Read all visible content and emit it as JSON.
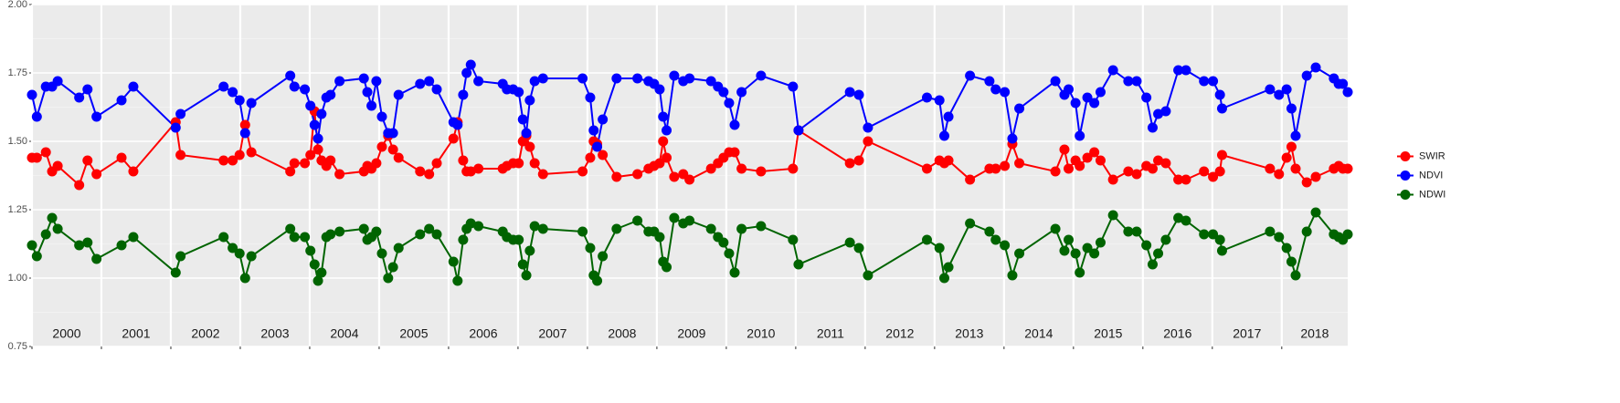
{
  "chart_data": {
    "type": "line",
    "x": [
      2000.0,
      2000.07,
      2000.2,
      2000.29,
      2000.37,
      2000.68,
      2000.8,
      2000.93,
      2001.29,
      2001.46,
      2002.07,
      2002.14,
      2002.76,
      2002.89,
      2002.99,
      2003.07,
      2003.16,
      2003.72,
      2003.78,
      2003.93,
      2004.01,
      2004.07,
      2004.12,
      2004.17,
      2004.24,
      2004.3,
      2004.43,
      2004.78,
      2004.83,
      2004.89,
      2004.96,
      2005.04,
      2005.13,
      2005.2,
      2005.28,
      2005.59,
      2005.72,
      2005.83,
      2006.07,
      2006.13,
      2006.21,
      2006.26,
      2006.32,
      2006.43,
      2006.78,
      2006.84,
      2006.93,
      2007.01,
      2007.07,
      2007.12,
      2007.17,
      2007.24,
      2007.36,
      2007.93,
      2008.04,
      2008.09,
      2008.14,
      2008.22,
      2008.42,
      2008.72,
      2008.88,
      2008.96,
      2009.04,
      2009.09,
      2009.14,
      2009.25,
      2009.38,
      2009.47,
      2009.78,
      2009.88,
      2009.96,
      2010.04,
      2010.12,
      2010.22,
      2010.5,
      2010.96,
      2011.04,
      2011.78,
      2011.91,
      2012.04,
      2012.89,
      2013.07,
      2013.14,
      2013.2,
      2013.51,
      2013.79,
      2013.88,
      2014.01,
      2014.12,
      2014.22,
      2014.74,
      2014.87,
      2014.93,
      2015.03,
      2015.09,
      2015.2,
      2015.3,
      2015.39,
      2015.57,
      2015.79,
      2015.91,
      2016.05,
      2016.14,
      2016.22,
      2016.33,
      2016.51,
      2016.62,
      2016.88,
      2017.01,
      2017.11,
      2017.14,
      2017.83,
      2017.96,
      2018.07,
      2018.14,
      2018.2,
      2018.36,
      2018.49,
      2018.75,
      2018.82,
      2018.88,
      2018.95
    ],
    "series": [
      {
        "name": "SWIR",
        "color": "#ff0000",
        "values": [
          1.44,
          1.44,
          1.46,
          1.39,
          1.41,
          1.34,
          1.43,
          1.38,
          1.44,
          1.39,
          1.57,
          1.45,
          1.43,
          1.43,
          1.45,
          1.56,
          1.46,
          1.39,
          1.42,
          1.42,
          1.45,
          1.61,
          1.47,
          1.43,
          1.41,
          1.43,
          1.38,
          1.39,
          1.41,
          1.4,
          1.42,
          1.48,
          1.52,
          1.47,
          1.44,
          1.39,
          1.38,
          1.42,
          1.51,
          1.57,
          1.43,
          1.39,
          1.39,
          1.4,
          1.4,
          1.41,
          1.42,
          1.42,
          1.5,
          1.52,
          1.48,
          1.42,
          1.38,
          1.39,
          1.44,
          1.5,
          1.49,
          1.45,
          1.37,
          1.38,
          1.4,
          1.41,
          1.42,
          1.5,
          1.44,
          1.37,
          1.38,
          1.36,
          1.4,
          1.42,
          1.44,
          1.46,
          1.46,
          1.4,
          1.39,
          1.4,
          1.54,
          1.42,
          1.43,
          1.5,
          1.4,
          1.43,
          1.42,
          1.43,
          1.36,
          1.4,
          1.4,
          1.41,
          1.49,
          1.42,
          1.39,
          1.47,
          1.4,
          1.43,
          1.41,
          1.44,
          1.46,
          1.43,
          1.36,
          1.39,
          1.38,
          1.41,
          1.4,
          1.43,
          1.42,
          1.36,
          1.36,
          1.39,
          1.37,
          1.39,
          1.45,
          1.4,
          1.38,
          1.44,
          1.48,
          1.4,
          1.35,
          1.37,
          1.4,
          1.41,
          1.4,
          1.4
        ]
      },
      {
        "name": "NDVI",
        "color": "#0000ff",
        "values": [
          1.67,
          1.59,
          1.7,
          1.7,
          1.72,
          1.66,
          1.69,
          1.59,
          1.65,
          1.7,
          1.55,
          1.6,
          1.7,
          1.68,
          1.65,
          1.53,
          1.64,
          1.74,
          1.7,
          1.69,
          1.63,
          1.56,
          1.51,
          1.6,
          1.66,
          1.67,
          1.72,
          1.73,
          1.68,
          1.63,
          1.72,
          1.59,
          1.53,
          1.53,
          1.67,
          1.71,
          1.72,
          1.69,
          1.57,
          1.56,
          1.67,
          1.75,
          1.78,
          1.72,
          1.71,
          1.69,
          1.69,
          1.68,
          1.58,
          1.53,
          1.65,
          1.72,
          1.73,
          1.73,
          1.66,
          1.54,
          1.48,
          1.58,
          1.73,
          1.73,
          1.72,
          1.71,
          1.69,
          1.59,
          1.54,
          1.74,
          1.72,
          1.73,
          1.72,
          1.7,
          1.68,
          1.64,
          1.56,
          1.68,
          1.74,
          1.7,
          1.54,
          1.68,
          1.67,
          1.55,
          1.66,
          1.65,
          1.52,
          1.59,
          1.74,
          1.72,
          1.69,
          1.68,
          1.51,
          1.62,
          1.72,
          1.67,
          1.69,
          1.64,
          1.52,
          1.66,
          1.64,
          1.68,
          1.76,
          1.72,
          1.72,
          1.66,
          1.55,
          1.6,
          1.61,
          1.76,
          1.76,
          1.72,
          1.72,
          1.67,
          1.62,
          1.69,
          1.67,
          1.69,
          1.62,
          1.52,
          1.74,
          1.77,
          1.73,
          1.71,
          1.71,
          1.68
        ]
      },
      {
        "name": "NDWI",
        "color": "#006400",
        "values": [
          1.12,
          1.08,
          1.16,
          1.22,
          1.18,
          1.12,
          1.13,
          1.07,
          1.12,
          1.15,
          1.02,
          1.08,
          1.15,
          1.11,
          1.09,
          1.0,
          1.08,
          1.18,
          1.15,
          1.15,
          1.1,
          1.05,
          0.99,
          1.02,
          1.15,
          1.16,
          1.17,
          1.18,
          1.14,
          1.15,
          1.17,
          1.09,
          1.0,
          1.04,
          1.11,
          1.16,
          1.18,
          1.16,
          1.06,
          0.99,
          1.14,
          1.18,
          1.2,
          1.19,
          1.17,
          1.15,
          1.14,
          1.14,
          1.05,
          1.01,
          1.1,
          1.19,
          1.18,
          1.17,
          1.11,
          1.01,
          0.99,
          1.08,
          1.18,
          1.21,
          1.17,
          1.17,
          1.15,
          1.06,
          1.04,
          1.22,
          1.2,
          1.21,
          1.18,
          1.15,
          1.13,
          1.09,
          1.02,
          1.18,
          1.19,
          1.14,
          1.05,
          1.13,
          1.11,
          1.01,
          1.14,
          1.11,
          1.0,
          1.04,
          1.2,
          1.17,
          1.14,
          1.12,
          1.01,
          1.09,
          1.18,
          1.1,
          1.14,
          1.09,
          1.02,
          1.11,
          1.09,
          1.13,
          1.23,
          1.17,
          1.17,
          1.12,
          1.05,
          1.09,
          1.14,
          1.22,
          1.21,
          1.16,
          1.16,
          1.14,
          1.1,
          1.17,
          1.15,
          1.11,
          1.06,
          1.01,
          1.17,
          1.24,
          1.16,
          1.15,
          1.14,
          1.16
        ]
      }
    ],
    "xlim": [
      2000,
      2018.95
    ],
    "xticks": [
      2000,
      2001,
      2002,
      2003,
      2004,
      2005,
      2006,
      2007,
      2008,
      2009,
      2010,
      2011,
      2012,
      2013,
      2014,
      2015,
      2016,
      2017,
      2018
    ],
    "year_labels": [
      "2000",
      "2001",
      "2002",
      "2003",
      "2004",
      "2005",
      "2006",
      "2007",
      "2008",
      "2009",
      "2010",
      "2011",
      "2012",
      "2013",
      "2014",
      "2015",
      "2016",
      "2017",
      "2018"
    ],
    "ylim": [
      0.75,
      2.0
    ],
    "yticks": [
      {
        "value": 0.75,
        "label": "0.75"
      },
      {
        "value": 1.0,
        "label": "1.00"
      },
      {
        "value": 1.25,
        "label": "1.25"
      },
      {
        "value": 1.5,
        "label": "1.50"
      },
      {
        "value": 1.75,
        "label": "1.75"
      },
      {
        "value": 2.0,
        "label": "2.00"
      }
    ],
    "grid": true,
    "legend": "right"
  }
}
